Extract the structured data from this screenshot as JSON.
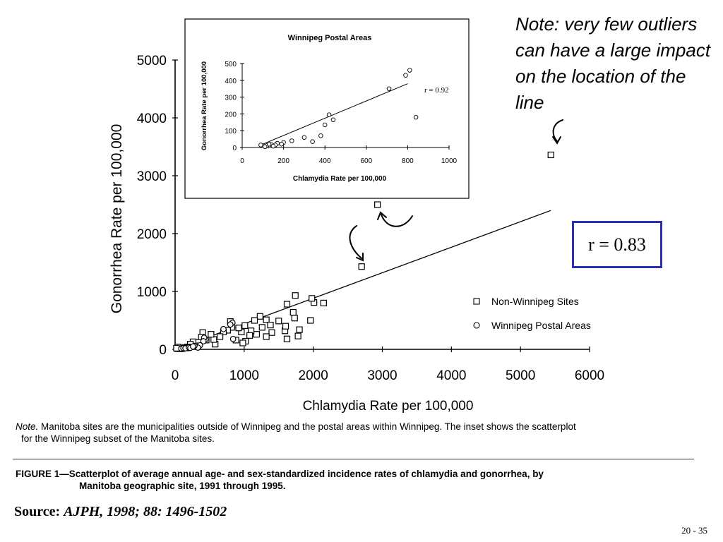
{
  "chart_data": [
    {
      "type": "scatter",
      "xlabel": "Chlamydia Rate per 100,000",
      "ylabel": "Gonorrhea Rate per 100,000",
      "xlim": [
        0,
        6000
      ],
      "ylim": [
        0,
        5000
      ],
      "xticks": [
        0,
        1000,
        2000,
        3000,
        4000,
        5000,
        6000
      ],
      "yticks": [
        0,
        1000,
        2000,
        3000,
        4000,
        5000
      ],
      "legend": {
        "position": "lower-right",
        "entries": [
          "Non-Winnipeg Sites",
          "Winnipeg Postal Areas"
        ]
      },
      "series": [
        {
          "name": "Non-Winnipeg Sites",
          "marker": "square",
          "points": [
            [
              5440,
              3360
            ],
            [
              2930,
              2500
            ],
            [
              2700,
              1430
            ],
            [
              2010,
              810
            ],
            [
              1980,
              880
            ],
            [
              1740,
              930
            ],
            [
              1710,
              640
            ],
            [
              1620,
              780
            ],
            [
              1730,
              540
            ],
            [
              1800,
              340
            ],
            [
              1780,
              230
            ],
            [
              1590,
              320
            ],
            [
              1500,
              490
            ],
            [
              1620,
              180
            ],
            [
              1400,
              290
            ],
            [
              1320,
              510
            ],
            [
              1230,
              570
            ],
            [
              1320,
              220
            ],
            [
              1180,
              260
            ],
            [
              1100,
              320
            ],
            [
              1080,
              240
            ],
            [
              1020,
              140
            ],
            [
              980,
              110
            ],
            [
              880,
              160
            ],
            [
              960,
              300
            ],
            [
              1010,
              410
            ],
            [
              920,
              370
            ],
            [
              820,
              380
            ],
            [
              800,
              480
            ],
            [
              760,
              330
            ],
            [
              700,
              300
            ],
            [
              650,
              220
            ],
            [
              580,
              90
            ],
            [
              560,
              170
            ],
            [
              520,
              260
            ],
            [
              450,
              160
            ],
            [
              400,
              290
            ],
            [
              380,
              210
            ],
            [
              340,
              120
            ],
            [
              300,
              60
            ],
            [
              260,
              130
            ],
            [
              220,
              90
            ],
            [
              180,
              40
            ],
            [
              140,
              30
            ],
            [
              100,
              20
            ],
            [
              60,
              10
            ],
            [
              40,
              40
            ],
            [
              20,
              20
            ],
            [
              1960,
              500
            ],
            [
              2150,
              800
            ],
            [
              1600,
              400
            ],
            [
              1380,
              420
            ],
            [
              1260,
              380
            ],
            [
              1150,
              500
            ]
          ]
        },
        {
          "name": "Winnipeg Postal Areas",
          "marker": "circle",
          "points": [
            [
              830,
              460
            ],
            [
              800,
              430
            ],
            [
              840,
              180
            ],
            [
              700,
              350
            ],
            [
              440,
              170
            ],
            [
              420,
              200
            ],
            [
              410,
              140
            ],
            [
              360,
              70
            ],
            [
              330,
              30
            ],
            [
              280,
              60
            ],
            [
              240,
              40
            ],
            [
              190,
              20
            ],
            [
              160,
              30
            ],
            [
              130,
              10
            ],
            [
              110,
              15
            ],
            [
              100,
              5
            ],
            [
              90,
              12
            ],
            [
              120,
              20
            ],
            [
              150,
              18
            ],
            [
              200,
              35
            ],
            [
              220,
              25
            ],
            [
              260,
              50
            ]
          ]
        }
      ],
      "fit_line": {
        "from": [
          0,
          0
        ],
        "to": [
          5440,
          2400
        ]
      },
      "r_value": "r = 0.83"
    },
    {
      "type": "scatter",
      "title": "Winnipeg Postal Areas",
      "xlabel": "Chlamydia Rate per 100,000",
      "ylabel": "Gonorrhea Rate per 100,000",
      "xlim": [
        0,
        1000
      ],
      "ylim": [
        0,
        500
      ],
      "xticks": [
        0,
        200,
        400,
        600,
        800,
        1000
      ],
      "yticks": [
        0,
        100,
        200,
        300,
        400,
        500
      ],
      "series": [
        {
          "marker": "circle",
          "points": [
            [
              810,
              460
            ],
            [
              790,
              430
            ],
            [
              840,
              180
            ],
            [
              710,
              350
            ],
            [
              420,
              195
            ],
            [
              440,
              165
            ],
            [
              400,
              135
            ],
            [
              380,
              70
            ],
            [
              340,
              35
            ],
            [
              300,
              60
            ],
            [
              240,
              40
            ],
            [
              200,
              30
            ],
            [
              190,
              20
            ],
            [
              170,
              25
            ],
            [
              160,
              15
            ],
            [
              140,
              18
            ],
            [
              120,
              12
            ],
            [
              100,
              10
            ],
            [
              90,
              15
            ],
            [
              110,
              5
            ],
            [
              130,
              20
            ],
            [
              150,
              8
            ]
          ]
        }
      ],
      "fit_line": {
        "from": [
          80,
          10
        ],
        "to": [
          800,
          380
        ]
      },
      "r_value": "r = 0.92"
    }
  ],
  "callout_note": "Note: very few outliers can have a large impact on the location of the line",
  "r_box_label": "r = 0.83",
  "figure_note_lead": "Note.",
  "figure_note_text": " Manitoba sites are the municipalities outside of Winnipeg and the postal areas within Winnipeg. The inset shows the scatterplot",
  "figure_note_text2": "for the Winnipeg subset of the Manitoba sites.",
  "caption_line1": "FIGURE 1—Scatterplot of average annual age- and sex-standardized incidence rates of chlamydia and gonorrhea, by",
  "caption_line2": "Manitoba geographic site, 1991 through 1995.",
  "source_label": "Source:",
  "source_citation": "AJPH, 1998; 88: 1496-1502",
  "page_number": "20  -  35",
  "colors": {
    "box_border": "#2b2fb5",
    "ink": "#000000"
  }
}
